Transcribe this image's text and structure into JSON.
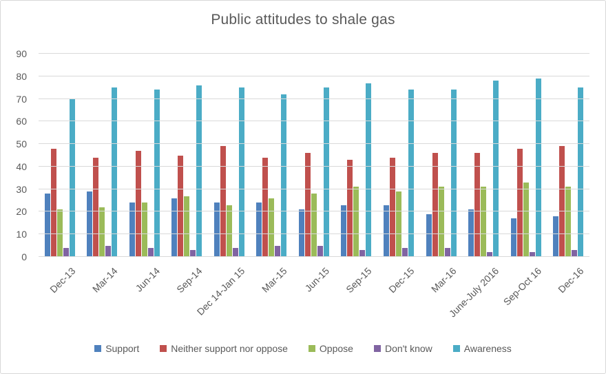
{
  "chart_data": {
    "type": "bar",
    "title": "Public attitudes to shale gas",
    "categories": [
      "Dec-13",
      "Mar-14",
      "Jun-14",
      "Sep-14",
      "Dec 14-Jan 15",
      "Mar-15",
      "Jun-15",
      "Sep-15",
      "Dec-15",
      "Mar-16",
      "June-July 2016",
      "Sep-Oct 16",
      "Dec-16"
    ],
    "series": [
      {
        "name": "Support",
        "color": "#4F81BD",
        "values": [
          28,
          29,
          24,
          26,
          24,
          24,
          21,
          23,
          23,
          19,
          21,
          17,
          18
        ]
      },
      {
        "name": "Neither support nor oppose",
        "color": "#C0504D",
        "values": [
          48,
          44,
          47,
          45,
          49,
          44,
          46,
          43,
          44,
          46,
          46,
          48,
          49
        ]
      },
      {
        "name": "Oppose",
        "color": "#9BBB59",
        "values": [
          21,
          22,
          24,
          27,
          23,
          26,
          28,
          31,
          29,
          31,
          31,
          33,
          31
        ]
      },
      {
        "name": "Don't know",
        "color": "#8064A2",
        "values": [
          4,
          5,
          4,
          3,
          4,
          5,
          5,
          3,
          4,
          4,
          2,
          2,
          3
        ]
      },
      {
        "name": "Awareness",
        "color": "#4BACC6",
        "values": [
          70,
          75,
          74,
          76,
          75,
          72,
          75,
          77,
          74,
          74,
          78,
          79,
          75
        ]
      }
    ],
    "ylim": [
      0,
      90
    ],
    "yticks": [
      0,
      10,
      20,
      30,
      40,
      50,
      60,
      70,
      80,
      90
    ],
    "xlabel": "",
    "ylabel": "",
    "grid": "horizontal",
    "legend_position": "bottom",
    "colors": {
      "title_text": "#595959",
      "axis_text": "#595959",
      "gridline": "#d9d9d9",
      "border": "#d7d7d7",
      "background": "#ffffff"
    }
  }
}
